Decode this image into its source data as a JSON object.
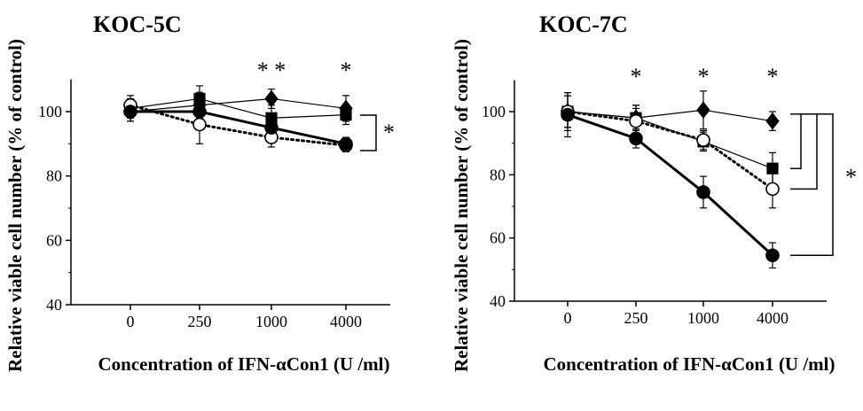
{
  "chart_data": [
    {
      "type": "line",
      "title": "KOC-5C",
      "xlabel": "Concentration of IFN-αCon1 (U /ml)",
      "ylabel": "Relative viable cell number (% of control)",
      "categories": [
        "0",
        "250",
        "1000",
        "4000"
      ],
      "ylim": [
        40,
        110
      ],
      "yticks": [
        40,
        60,
        80,
        100
      ],
      "series": [
        {
          "marker": "diamond-filled",
          "line": "solid-thin",
          "values": [
            100,
            102,
            104,
            101
          ],
          "errors": [
            3,
            4,
            3,
            4
          ]
        },
        {
          "marker": "square-filled",
          "line": "solid-thin",
          "values": [
            101,
            104,
            98,
            99
          ],
          "errors": [
            3,
            4,
            4,
            3
          ]
        },
        {
          "marker": "circle-open",
          "line": "dotted-thick",
          "values": [
            102,
            96,
            92,
            89.5
          ],
          "errors": [
            3,
            6,
            3,
            2
          ]
        },
        {
          "marker": "circle-filled",
          "line": "solid-thick",
          "values": [
            100,
            100,
            95,
            90
          ],
          "errors": [
            3,
            3,
            3,
            2
          ]
        }
      ],
      "annotations": {
        "above_points": [
          {
            "category": "1000",
            "text": "* *"
          },
          {
            "category": "4000",
            "text": "*"
          }
        ],
        "bracket": {
          "text": "*"
        }
      }
    },
    {
      "type": "line",
      "title": "KOC-7C",
      "xlabel": "Concentration of IFN-αCon1 (U /ml)",
      "ylabel": "Relative viable cell number (% of control)",
      "categories": [
        "0",
        "250",
        "1000",
        "4000"
      ],
      "ylim": [
        40,
        110
      ],
      "yticks": [
        40,
        60,
        80,
        100
      ],
      "series": [
        {
          "marker": "diamond-filled",
          "line": "solid-thin",
          "values": [
            100,
            98,
            100.5,
            97
          ],
          "errors": [
            5,
            4,
            6,
            3
          ]
        },
        {
          "marker": "square-filled",
          "line": "solid-thin",
          "values": [
            100,
            98,
            90.5,
            82
          ],
          "errors": [
            5,
            4,
            3,
            5
          ]
        },
        {
          "marker": "circle-open",
          "line": "dotted-thick",
          "values": [
            100,
            97,
            91,
            75.5
          ],
          "errors": [
            6,
            4,
            3,
            6
          ]
        },
        {
          "marker": "circle-filled",
          "line": "solid-thick",
          "values": [
            99,
            91.5,
            74.5,
            54.5
          ],
          "errors": [
            7,
            3,
            5,
            4
          ]
        }
      ],
      "annotations": {
        "above_points": [
          {
            "category": "250",
            "text": "*"
          },
          {
            "category": "1000",
            "text": "*"
          },
          {
            "category": "4000",
            "text": "*"
          }
        ],
        "bracket": {
          "text": "*"
        }
      }
    }
  ]
}
